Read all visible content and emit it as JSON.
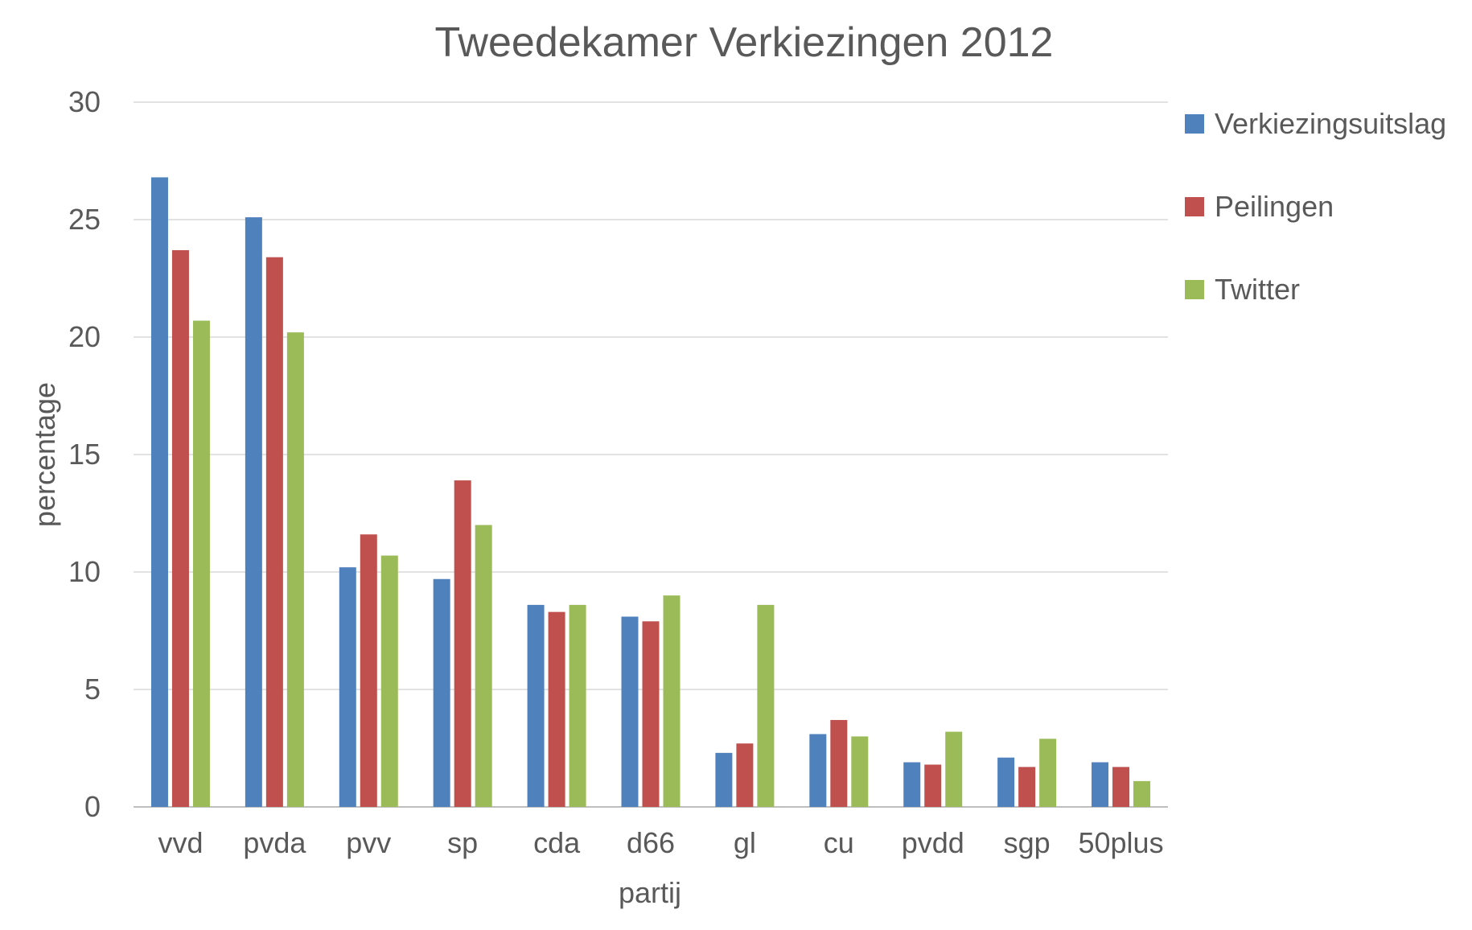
{
  "chart_data": {
    "type": "bar",
    "title": "Tweedekamer Verkiezingen 2012",
    "xlabel": "partij",
    "ylabel": "percentage",
    "ylim": [
      0,
      30
    ],
    "yticks": [
      "0",
      "5",
      "10",
      "15",
      "20",
      "25",
      "30"
    ],
    "grid": true,
    "legend_position": "right",
    "categories": [
      "vvd",
      "pvda",
      "pvv",
      "sp",
      "cda",
      "d66",
      "gl",
      "cu",
      "pvdd",
      "sgp",
      "50plus"
    ],
    "series": [
      {
        "name": "Verkiezingsuitslag",
        "color": "#4f81bd",
        "values": [
          26.8,
          25.1,
          10.2,
          9.7,
          8.6,
          8.1,
          2.3,
          3.1,
          1.9,
          2.1,
          1.9
        ]
      },
      {
        "name": "Peilingen",
        "color": "#c0504d",
        "values": [
          23.7,
          23.4,
          11.6,
          13.9,
          8.3,
          7.9,
          2.7,
          3.7,
          1.8,
          1.7,
          1.7
        ]
      },
      {
        "name": "Twitter",
        "color": "#9bbb59",
        "values": [
          20.7,
          20.2,
          10.7,
          12.0,
          8.6,
          9.0,
          8.6,
          3.0,
          3.2,
          2.9,
          1.1
        ]
      }
    ]
  }
}
